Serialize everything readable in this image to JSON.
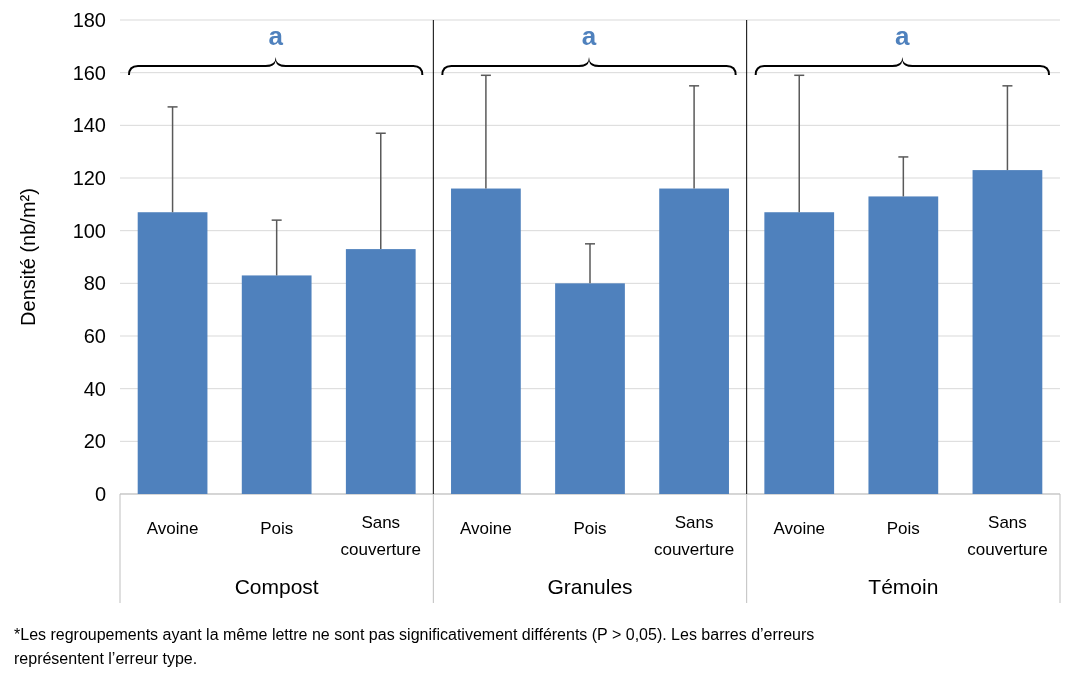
{
  "chart_data": [
    {
      "type": "bar",
      "ylabel": "Densité (nb/m²)",
      "xlabel": "Compost",
      "categories": [
        "Avoine",
        "Pois",
        "Sans couverture"
      ],
      "values": [
        107,
        83,
        93
      ],
      "errors": [
        [
          107,
          147
        ],
        [
          83,
          104
        ],
        [
          93,
          137
        ]
      ],
      "color": "#4f81bd",
      "ylim": [
        0,
        180
      ],
      "yticks": [
        0,
        20,
        40,
        60,
        80,
        100,
        120,
        140,
        160,
        180
      ],
      "grid": "y",
      "annotations": [
        "a",
        "*Les regroupements ayant la même lettre ne sont pas significativement différents (P > 0,05). Les barres d’erreurs représentent l’erreur type."
      ]
    },
    {
      "type": "bar",
      "xlabel": "Granules",
      "categories": [
        "Avoine",
        "Pois",
        "Sans couverture"
      ],
      "values": [
        116,
        80,
        116
      ],
      "errors": [
        [
          116,
          159
        ],
        [
          80,
          95
        ],
        [
          116,
          155
        ]
      ],
      "color": "#4f81bd",
      "ylim": [
        0,
        180
      ],
      "yticks": [
        0,
        20,
        40,
        60,
        80,
        100,
        120,
        140,
        160,
        180
      ],
      "grid": "y",
      "tick_labels": "x",
      "annotations": [
        "a"
      ]
    },
    {
      "type": "bar",
      "xlabel": "Témoin",
      "categories": [
        "Avoine",
        "Pois",
        "Sans couverture"
      ],
      "values": [
        107,
        113,
        123
      ],
      "errors": [
        [
          107,
          159
        ],
        [
          113,
          128
        ],
        [
          123,
          155
        ]
      ],
      "color": "#4f81bd",
      "ylim": [
        0,
        180
      ],
      "yticks": [
        0,
        20,
        40,
        60,
        80,
        100,
        120,
        140,
        160,
        180
      ],
      "grid": "y",
      "tick_labels": "x",
      "annotations": [
        "a"
      ]
    }
  ]
}
